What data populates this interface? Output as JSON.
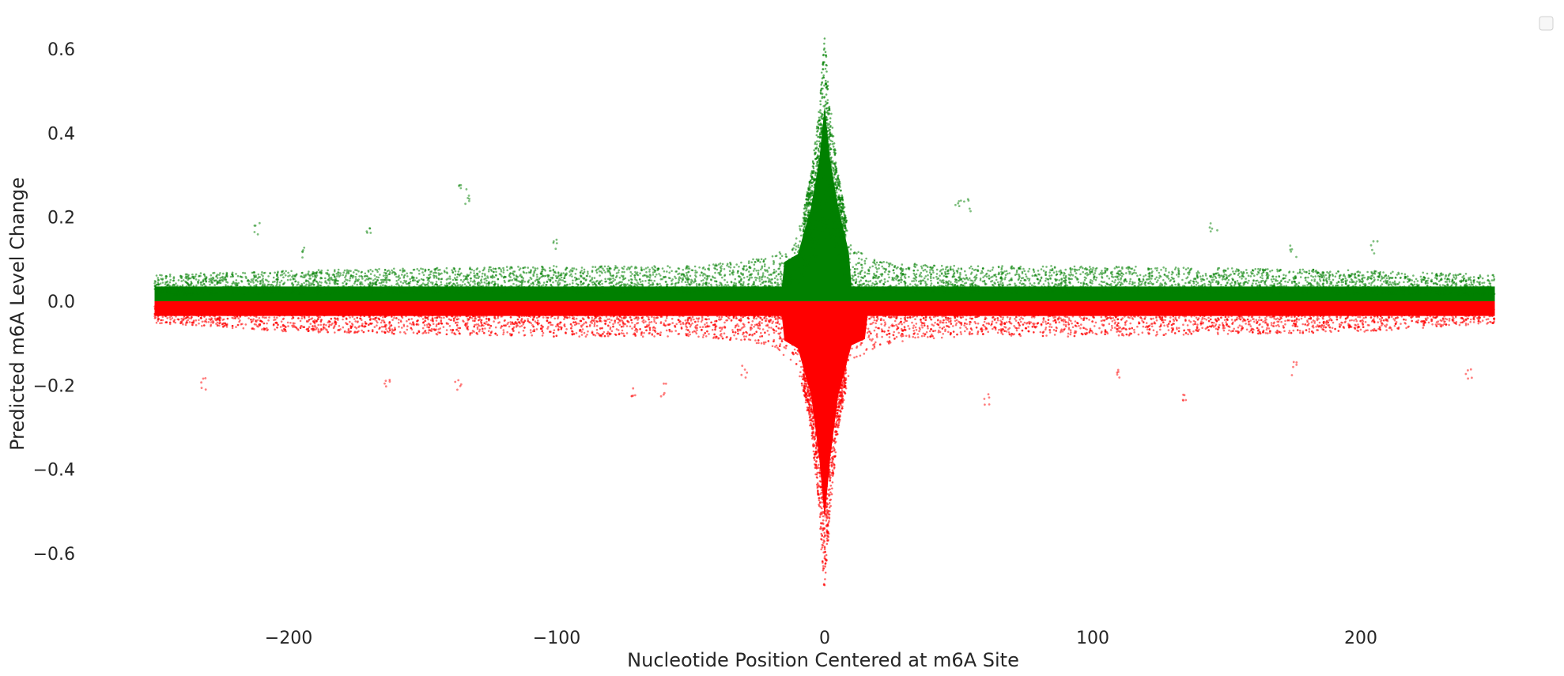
{
  "chart_data": {
    "type": "scatter",
    "title": "",
    "xlabel": "Nucleotide Position Centered at m6A Site",
    "ylabel": "Predicted m6A Level Change",
    "xlim": [
      -250,
      250
    ],
    "ylim": [
      -0.7,
      0.65
    ],
    "x_ticks": [
      -200,
      -100,
      0,
      100,
      200
    ],
    "y_ticks": [
      0.6,
      0.4,
      0.2,
      0.0,
      -0.2,
      -0.4,
      -0.6
    ],
    "x_tick_labels": [
      "−200",
      "−100",
      "0",
      "100",
      "200"
    ],
    "y_tick_labels": [
      "0.6",
      "0.4",
      "0.2",
      "0.0",
      "−0.2",
      "−0.4",
      "−0.6"
    ],
    "grid": false,
    "legend": {
      "placement": "top-right",
      "entries": []
    },
    "colors": {
      "positive": "#008000",
      "negative": "#ff0000",
      "text": "#262626"
    },
    "series": [
      {
        "values_sign": "positive",
        "color": "#008000",
        "envelope": [
          [
            -250,
            0.06
          ],
          [
            -200,
            0.07
          ],
          [
            -150,
            0.075
          ],
          [
            -100,
            0.08
          ],
          [
            -50,
            0.08
          ],
          [
            -20,
            0.1
          ],
          [
            -10,
            0.15
          ],
          [
            -5,
            0.3
          ],
          [
            -2,
            0.45
          ],
          [
            0,
            0.62
          ],
          [
            2,
            0.45
          ],
          [
            5,
            0.3
          ],
          [
            10,
            0.12
          ],
          [
            20,
            0.09
          ],
          [
            50,
            0.08
          ],
          [
            100,
            0.08
          ],
          [
            150,
            0.075
          ],
          [
            200,
            0.07
          ],
          [
            250,
            0.06
          ]
        ],
        "highlights": [
          [
            -212,
            0.17
          ],
          [
            -195,
            0.12
          ],
          [
            -170,
            0.16
          ],
          [
            -135,
            0.28
          ],
          [
            -133,
            0.24
          ],
          [
            -100,
            0.13
          ],
          [
            50,
            0.24
          ],
          [
            53,
            0.23
          ],
          [
            145,
            0.18
          ],
          [
            175,
            0.12
          ],
          [
            205,
            0.13
          ]
        ]
      },
      {
        "values_sign": "negative",
        "color": "#ff0000",
        "envelope": [
          [
            -250,
            -0.05
          ],
          [
            -200,
            -0.07
          ],
          [
            -150,
            -0.075
          ],
          [
            -100,
            -0.08
          ],
          [
            -50,
            -0.08
          ],
          [
            -20,
            -0.1
          ],
          [
            -10,
            -0.15
          ],
          [
            -5,
            -0.3
          ],
          [
            -2,
            -0.5
          ],
          [
            0,
            -0.69
          ],
          [
            2,
            -0.5
          ],
          [
            5,
            -0.3
          ],
          [
            10,
            -0.14
          ],
          [
            20,
            -0.1
          ],
          [
            50,
            -0.08
          ],
          [
            100,
            -0.08
          ],
          [
            150,
            -0.075
          ],
          [
            200,
            -0.07
          ],
          [
            250,
            -0.05
          ]
        ],
        "highlights": [
          [
            -232,
            -0.2
          ],
          [
            -163,
            -0.2
          ],
          [
            -137,
            -0.2
          ],
          [
            -71,
            -0.21
          ],
          [
            -60,
            -0.21
          ],
          [
            -30,
            -0.17
          ],
          [
            60,
            -0.23
          ],
          [
            110,
            -0.18
          ],
          [
            135,
            -0.22
          ],
          [
            175,
            -0.16
          ],
          [
            240,
            -0.17
          ]
        ]
      }
    ]
  }
}
